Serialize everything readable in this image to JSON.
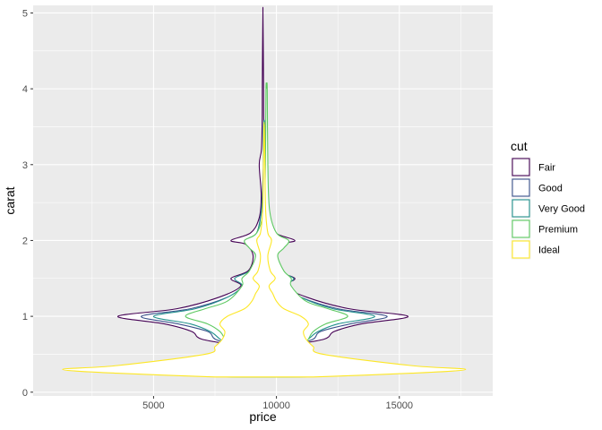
{
  "chart_data": {
    "type": "violin",
    "title": "",
    "xlabel": "price",
    "ylabel": "carat",
    "xlim": [
      100,
      18800
    ],
    "ylim": [
      -0.05,
      5.1
    ],
    "x_ticks": [
      5000,
      10000,
      15000
    ],
    "x_tick_labels": [
      "5000",
      "10000",
      "15000"
    ],
    "y_ticks": [
      0,
      1,
      2,
      3,
      4,
      5
    ],
    "y_tick_labels": [
      "0",
      "1",
      "2",
      "3",
      "4",
      "5"
    ],
    "grid": true,
    "legend": {
      "title": "cut",
      "placement": "right",
      "entries": [
        "Fair",
        "Good",
        "Very Good",
        "Premium",
        "Ideal"
      ]
    },
    "series": [
      {
        "name": "Fair",
        "color": "#440154",
        "center_x": 9450,
        "profile": [
          [
            0.2,
            700
          ],
          [
            0.25,
            3200
          ],
          [
            0.3,
            4300
          ],
          [
            0.35,
            3000
          ],
          [
            0.5,
            1300
          ],
          [
            0.6,
            1000
          ],
          [
            0.7,
            2500
          ],
          [
            0.8,
            2900
          ],
          [
            0.9,
            4000
          ],
          [
            1.0,
            5900
          ],
          [
            1.1,
            3500
          ],
          [
            1.25,
            1800
          ],
          [
            1.4,
            900
          ],
          [
            1.5,
            1300
          ],
          [
            1.6,
            600
          ],
          [
            1.8,
            400
          ],
          [
            1.95,
            700
          ],
          [
            2.0,
            1300
          ],
          [
            2.1,
            500
          ],
          [
            2.3,
            150
          ],
          [
            2.6,
            70
          ],
          [
            3.0,
            150
          ],
          [
            3.2,
            60
          ],
          [
            3.6,
            30
          ],
          [
            4.0,
            25
          ],
          [
            4.5,
            15
          ],
          [
            5.01,
            0
          ]
        ]
      },
      {
        "name": "Good",
        "color": "#3b528b",
        "center_x": 9500,
        "profile": [
          [
            0.2,
            900
          ],
          [
            0.25,
            3800
          ],
          [
            0.3,
            4800
          ],
          [
            0.35,
            3500
          ],
          [
            0.5,
            1400
          ],
          [
            0.6,
            1200
          ],
          [
            0.7,
            2000
          ],
          [
            0.8,
            2300
          ],
          [
            0.9,
            3500
          ],
          [
            1.0,
            5000
          ],
          [
            1.1,
            3000
          ],
          [
            1.25,
            1500
          ],
          [
            1.4,
            800
          ],
          [
            1.5,
            1100
          ],
          [
            1.6,
            500
          ],
          [
            1.8,
            350
          ],
          [
            2.0,
            700
          ],
          [
            2.1,
            300
          ],
          [
            2.4,
            120
          ],
          [
            2.8,
            50
          ],
          [
            3.0,
            20
          ]
        ]
      },
      {
        "name": "Very Good",
        "color": "#21908c",
        "center_x": 9500,
        "profile": [
          [
            0.2,
            1000
          ],
          [
            0.25,
            4500
          ],
          [
            0.3,
            5900
          ],
          [
            0.35,
            4200
          ],
          [
            0.5,
            1800
          ],
          [
            0.6,
            1400
          ],
          [
            0.7,
            1800
          ],
          [
            0.8,
            2200
          ],
          [
            0.9,
            3000
          ],
          [
            1.0,
            4500
          ],
          [
            1.1,
            2800
          ],
          [
            1.25,
            1500
          ],
          [
            1.4,
            900
          ],
          [
            1.5,
            1200
          ],
          [
            1.6,
            600
          ],
          [
            1.8,
            350
          ],
          [
            2.0,
            650
          ],
          [
            2.1,
            300
          ],
          [
            2.4,
            100
          ],
          [
            2.8,
            40
          ],
          [
            3.5,
            30
          ]
        ]
      },
      {
        "name": "Premium",
        "color": "#5ec962",
        "center_x": 9600,
        "profile": [
          [
            0.2,
            1300
          ],
          [
            0.25,
            5000
          ],
          [
            0.3,
            6800
          ],
          [
            0.35,
            5000
          ],
          [
            0.5,
            1900
          ],
          [
            0.6,
            1500
          ],
          [
            0.7,
            1700
          ],
          [
            0.8,
            1900
          ],
          [
            0.9,
            2400
          ],
          [
            1.0,
            3300
          ],
          [
            1.1,
            2500
          ],
          [
            1.2,
            1600
          ],
          [
            1.4,
            1000
          ],
          [
            1.5,
            1000
          ],
          [
            1.6,
            700
          ],
          [
            1.8,
            450
          ],
          [
            1.9,
            700
          ],
          [
            2.0,
            900
          ],
          [
            2.1,
            400
          ],
          [
            2.4,
            120
          ],
          [
            3.0,
            50
          ],
          [
            4.0,
            25
          ],
          [
            4.01,
            0
          ]
        ]
      },
      {
        "name": "Ideal",
        "color": "#fde725",
        "center_x": 9500,
        "profile": [
          [
            0.2,
            2000
          ],
          [
            0.25,
            6000
          ],
          [
            0.3,
            8200
          ],
          [
            0.35,
            6000
          ],
          [
            0.5,
            2400
          ],
          [
            0.6,
            2000
          ],
          [
            0.7,
            1700
          ],
          [
            0.8,
            1600
          ],
          [
            0.9,
            1800
          ],
          [
            1.0,
            1500
          ],
          [
            1.1,
            800
          ],
          [
            1.2,
            500
          ],
          [
            1.3,
            350
          ],
          [
            1.4,
            200
          ],
          [
            1.5,
            450
          ],
          [
            1.6,
            250
          ],
          [
            1.8,
            150
          ],
          [
            2.0,
            300
          ],
          [
            2.1,
            150
          ],
          [
            2.4,
            60
          ],
          [
            3.0,
            30
          ],
          [
            3.5,
            10
          ]
        ]
      }
    ]
  }
}
